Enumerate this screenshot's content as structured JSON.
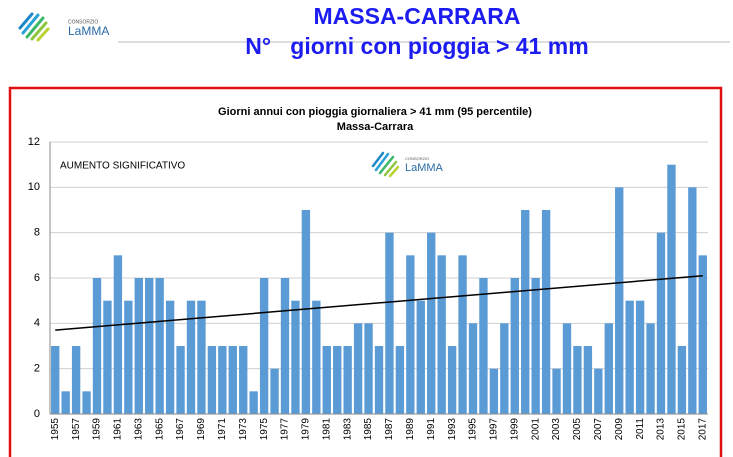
{
  "header": {
    "logo_small": "CONSORZIO",
    "logo": "LaMMA",
    "title": "MASSA-CARRARA",
    "subtitle": "N°   giorni con pioggia > 41 mm"
  },
  "chart_data": {
    "type": "bar",
    "title": "Giorni annui con pioggia giornaliera > 41 mm (95 percentile)",
    "subtitle": "Massa-Carrara",
    "annotation": "AUMENTO SIGNIFICATIVO",
    "watermark_small": "CONSORZIO",
    "watermark": "LaMMA",
    "categories": [
      "1955",
      null,
      "1957",
      null,
      "1959",
      null,
      "1961",
      null,
      "1963",
      null,
      "1965",
      null,
      "1967",
      null,
      "1969",
      null,
      "1971",
      null,
      "1973",
      null,
      "1975",
      null,
      "1977",
      null,
      "1979",
      null,
      "1981",
      null,
      "1983",
      null,
      "1985",
      null,
      "1987",
      null,
      "1989",
      null,
      "1991",
      null,
      "1993",
      null,
      "1995",
      null,
      "1997",
      null,
      "1999",
      null,
      "2001",
      null,
      "2003",
      null,
      "2005",
      null,
      "2007",
      null,
      "2009",
      null,
      "2011",
      null,
      "2013",
      null,
      "2015",
      null,
      "2017"
    ],
    "values": [
      3,
      1,
      3,
      1,
      6,
      5,
      7,
      5,
      6,
      6,
      6,
      5,
      3,
      5,
      5,
      3,
      3,
      3,
      3,
      1,
      6,
      2,
      6,
      5,
      9,
      5,
      3,
      3,
      3,
      4,
      4,
      3,
      8,
      3,
      7,
      5,
      8,
      7,
      3,
      7,
      4,
      6,
      2,
      4,
      6,
      9,
      6,
      9,
      2,
      4,
      3,
      3,
      2,
      4,
      10,
      5,
      5,
      4,
      8,
      11,
      3,
      10,
      7
    ],
    "color": "#5b9bd5",
    "trend_line": {
      "values": [
        3.7,
        6.1
      ],
      "color": "#000000"
    },
    "ylim": [
      0,
      12
    ],
    "yticks": [
      0,
      2,
      4,
      6,
      8,
      10,
      12
    ],
    "grid": true
  }
}
